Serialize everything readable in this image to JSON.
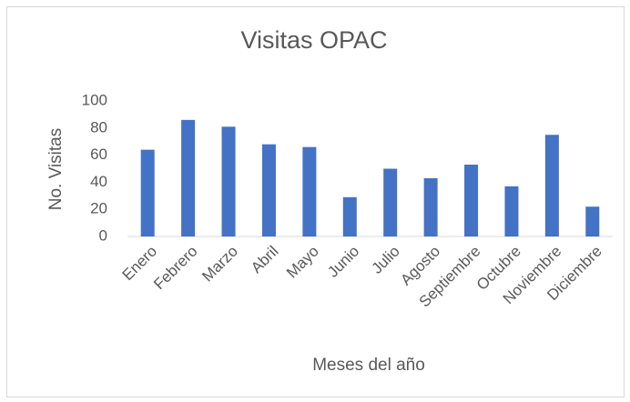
{
  "chart_data": {
    "type": "bar",
    "title": "Visitas OPAC",
    "y_label": "No. Visitas",
    "x_label": "Meses del año",
    "categories": [
      "Enero",
      "Febrero",
      "Marzo",
      "Abril",
      "Mayo",
      "Junio",
      "Julio",
      "Agosto",
      "Septiembre",
      "Octubre",
      "Noviembre",
      "Diciembre"
    ],
    "values": [
      64,
      86,
      81,
      68,
      66,
      29,
      50,
      43,
      53,
      37,
      75,
      22
    ],
    "color": "#4472c4",
    "ylim": [
      0,
      100
    ],
    "yticks": [
      0,
      20,
      40,
      60,
      80,
      100
    ],
    "grid": false
  }
}
